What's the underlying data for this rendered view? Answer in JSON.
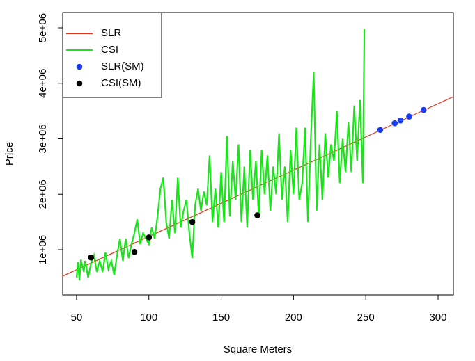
{
  "chart_data": {
    "type": "line",
    "x_label": "Square Meters",
    "y_label": "Price",
    "xlim": [
      40.4,
      310.6
    ],
    "ylim": [
      185000,
      5276000
    ],
    "xticks": [
      50,
      100,
      150,
      200,
      250,
      300
    ],
    "yticks": [
      {
        "value": 1000000,
        "label": "1e+06"
      },
      {
        "value": 2000000,
        "label": "2e+06"
      },
      {
        "value": 3000000,
        "label": "3e+06"
      },
      {
        "value": 4000000,
        "label": "4e+06"
      },
      {
        "value": 5000000,
        "label": "5e+06"
      }
    ],
    "legend": "top-left",
    "series": [
      {
        "name": "SLR",
        "type": "line",
        "color": "#e8311a",
        "x": [
          40.4,
          310.6
        ],
        "values": [
          524000,
          3759000
        ]
      },
      {
        "name": "CSI",
        "type": "line",
        "color": "#19e619",
        "x": [
          50,
          51,
          52,
          53,
          55,
          56,
          58,
          60,
          62,
          64,
          66,
          68,
          70,
          72,
          74,
          76,
          78,
          80,
          82,
          84,
          86,
          88,
          90,
          92,
          94,
          96,
          98,
          100,
          102,
          104,
          106,
          108,
          110,
          112,
          114,
          116,
          118,
          120,
          122,
          124,
          126,
          128,
          130,
          132,
          134,
          136,
          138,
          140,
          142,
          144,
          146,
          148,
          150,
          152,
          154,
          156,
          158,
          160,
          162,
          164,
          166,
          168,
          170,
          172,
          174,
          176,
          178,
          180,
          182,
          184,
          186,
          188,
          190,
          192,
          194,
          196,
          198,
          200,
          202,
          204,
          206,
          208,
          210,
          212,
          214,
          216,
          218,
          220,
          222,
          224,
          226,
          228,
          230,
          232,
          234,
          236,
          238,
          240,
          242,
          244,
          246,
          248,
          249
        ],
        "values": [
          500000,
          780000,
          450000,
          820000,
          600000,
          800000,
          500000,
          750000,
          900000,
          600000,
          800000,
          600000,
          950000,
          650000,
          800000,
          550000,
          900000,
          1200000,
          800000,
          1200000,
          850000,
          1100000,
          1300000,
          1550000,
          1100000,
          1300000,
          1200000,
          1100000,
          1400000,
          1200000,
          1600000,
          2100000,
          2300000,
          1500000,
          1200000,
          1900000,
          1300000,
          2300000,
          1400000,
          1700000,
          1900000,
          1300000,
          850000,
          1800000,
          2100000,
          1700000,
          2050000,
          1800000,
          2700000,
          1500000,
          2100000,
          1400000,
          2400000,
          1500000,
          3050000,
          1600000,
          2600000,
          1900000,
          2900000,
          1500000,
          2500000,
          1400000,
          2800000,
          1900000,
          2600000,
          1600000,
          2800000,
          2000000,
          2700000,
          1700000,
          2500000,
          2000000,
          3100000,
          1900000,
          2500000,
          1500000,
          2800000,
          2000000,
          3200000,
          1900000,
          2200000,
          3200000,
          1500000,
          3000000,
          4200000,
          1700000,
          2900000,
          1900000,
          3100000,
          2300000,
          2900000,
          2600000,
          3500000,
          2200000,
          3000000,
          2400000,
          3300000,
          2400000,
          3600000,
          2600000,
          3700000,
          2200000,
          4980000
        ]
      },
      {
        "name": "SLR(SM)",
        "type": "scatter",
        "color": "#1a3cf0",
        "x": [
          260,
          270,
          274,
          280,
          290
        ],
        "values": [
          3160000,
          3280000,
          3330000,
          3400000,
          3520000
        ]
      },
      {
        "name": "CSI(SM)",
        "type": "scatter",
        "color": "#000000",
        "x": [
          60,
          90,
          100,
          130,
          175
        ],
        "values": [
          860000,
          960000,
          1220000,
          1500000,
          1620000
        ]
      }
    ]
  }
}
